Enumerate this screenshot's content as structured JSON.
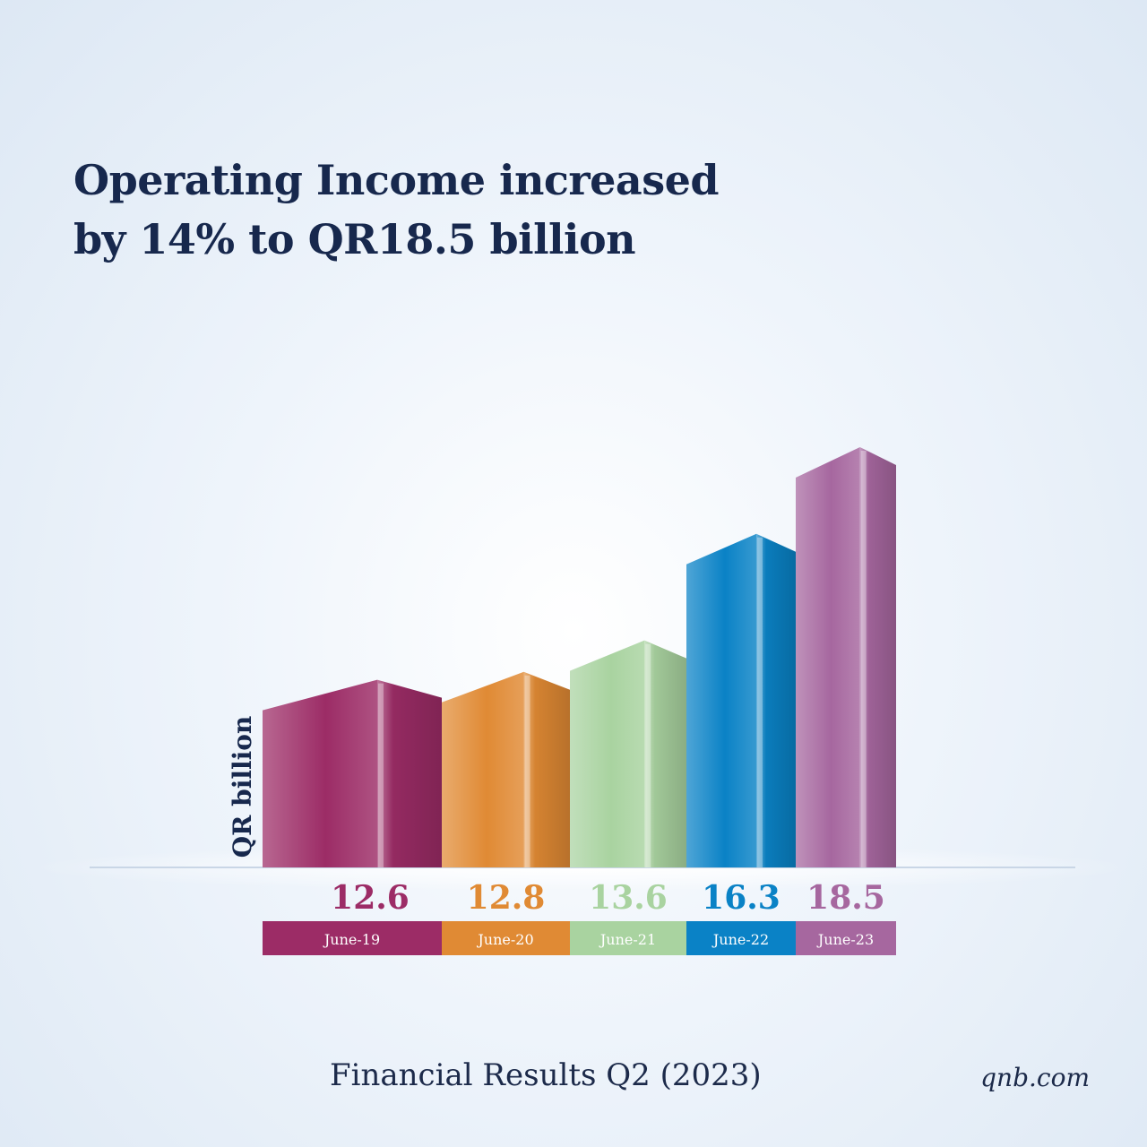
{
  "headline": {
    "line1": "Operating Income increased",
    "line2": "by 14% to QR18.5 billion"
  },
  "chart_data": {
    "type": "bar",
    "title": "Operating Income increased by 14% to QR18.5 billion",
    "ylabel": "QR billion",
    "categories": [
      "June-19",
      "June-20",
      "June-21",
      "June-22",
      "June-23"
    ],
    "values": [
      12.6,
      12.8,
      13.6,
      16.3,
      18.5
    ],
    "colors": [
      "#9c2c66",
      "#e08a34",
      "#a9d3a0",
      "#0a82c6",
      "#a6679f"
    ],
    "ylim": [
      10,
      20
    ],
    "grid": false,
    "legend": "none"
  },
  "footer": {
    "title": "Financial Results Q2 (2023)",
    "site": "qnb.com"
  }
}
